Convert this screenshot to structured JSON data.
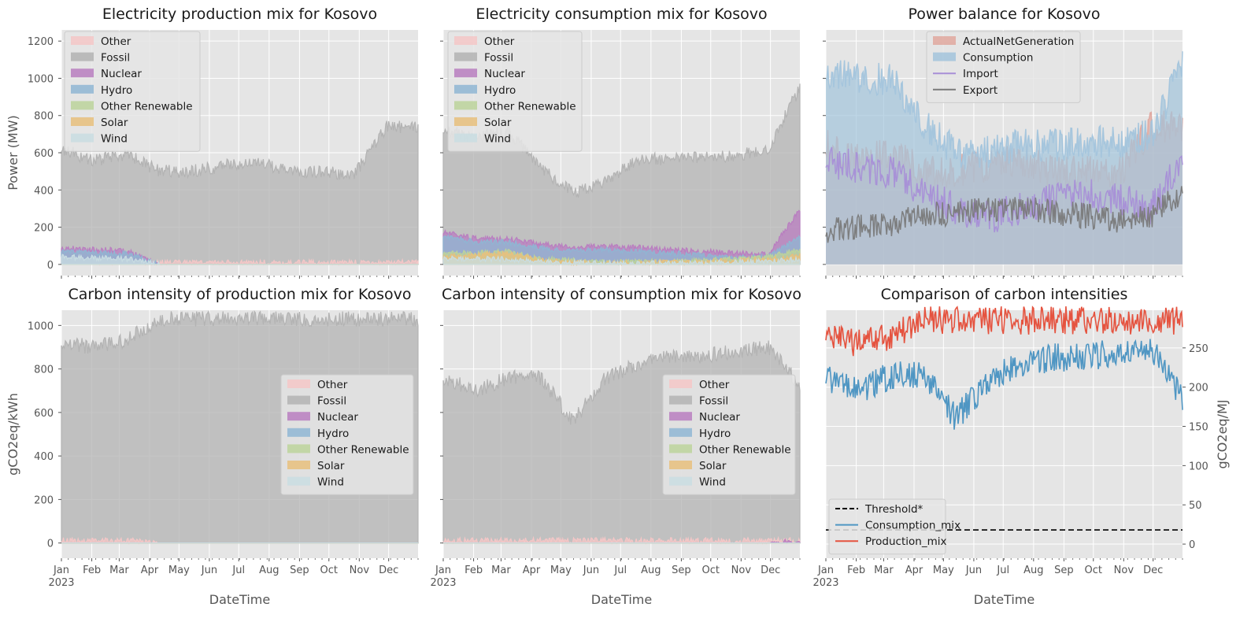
{
  "x_axis": {
    "months": [
      "Jan",
      "Feb",
      "Mar",
      "Apr",
      "May",
      "Jun",
      "Jul",
      "Aug",
      "Sep",
      "Oct",
      "Nov",
      "Dec"
    ],
    "year": "2023",
    "label": "DateTime"
  },
  "colors": {
    "Other": "#f4c7c7",
    "Fossil": "#b3b3b3",
    "Nuclear": "#b97ec0",
    "Hydro": "#8fb6d3",
    "Other Renewable": "#bcd39b",
    "Solar": "#e8c07d",
    "Wind": "#c9dde2",
    "ActualNetGeneration": "#e0a89f",
    "Consumption": "#a3c4dc",
    "Import": "#a88fd7",
    "Export": "#7a7a7a",
    "Threshold*": "#000000",
    "Consumption_mix": "#4f96c3",
    "Production_mix": "#e5533f"
  },
  "legends": {
    "mix": [
      "Other",
      "Fossil",
      "Nuclear",
      "Hydro",
      "Other Renewable",
      "Solar",
      "Wind"
    ],
    "balance": [
      "ActualNetGeneration",
      "Consumption",
      "Import",
      "Export"
    ],
    "comparison": [
      "Threshold*",
      "Consumption_mix",
      "Production_mix"
    ]
  },
  "chart_data": [
    {
      "type": "area",
      "title": "Electricity production mix for Kosovo",
      "ylabel": "Power (MW)",
      "xlabel": "",
      "yticks": [
        0,
        200,
        400,
        600,
        800,
        1000,
        1200
      ],
      "ylim": [
        -60,
        1260
      ],
      "legend": "top-left",
      "grid": true,
      "x": [
        "2023-01",
        "2023-02",
        "2023-03",
        "2023-04",
        "2023-05",
        "2023-06",
        "2023-07",
        "2023-08",
        "2023-09",
        "2023-10",
        "2023-11",
        "2023-12"
      ],
      "series": [
        {
          "name": "Fossil",
          "values": [
            620,
            560,
            590,
            500,
            500,
            530,
            550,
            500,
            500,
            480,
            740,
            740
          ]
        },
        {
          "name": "Other",
          "values": [
            20,
            15,
            15,
            10,
            10,
            10,
            10,
            10,
            10,
            10,
            10,
            10
          ]
        },
        {
          "name": "Nuclear",
          "values": [
            90,
            80,
            75,
            0,
            0,
            0,
            0,
            0,
            0,
            0,
            0,
            0
          ]
        },
        {
          "name": "Hydro",
          "values": [
            70,
            60,
            60,
            0,
            0,
            0,
            0,
            0,
            0,
            0,
            0,
            0
          ]
        },
        {
          "name": "Other Renewable",
          "values": [
            0,
            0,
            0,
            0,
            0,
            0,
            0,
            0,
            0,
            0,
            0,
            0
          ]
        },
        {
          "name": "Solar",
          "values": [
            0,
            0,
            0,
            0,
            0,
            0,
            0,
            0,
            0,
            0,
            0,
            0
          ]
        },
        {
          "name": "Wind",
          "values": [
            40,
            35,
            30,
            0,
            0,
            0,
            0,
            0,
            0,
            0,
            0,
            0
          ]
        }
      ]
    },
    {
      "type": "area",
      "title": "Electricity consumption mix for Kosovo",
      "ylabel": "",
      "xlabel": "",
      "yticks": [
        0,
        200,
        400,
        600,
        800,
        1000,
        1200
      ],
      "ylim": [
        -60,
        1260
      ],
      "legend": "top-left",
      "grid": true,
      "x": [
        "2023-01",
        "2023-02",
        "2023-03",
        "2023-04",
        "2023-05",
        "2023-06",
        "2023-07",
        "2023-08",
        "2023-09",
        "2023-10",
        "2023-11",
        "2023-12"
      ],
      "series": [
        {
          "name": "Fossil",
          "values": [
            720,
            680,
            720,
            520,
            380,
            450,
            560,
            570,
            580,
            580,
            620,
            960
          ]
        },
        {
          "name": "Other",
          "values": [
            20,
            20,
            20,
            15,
            10,
            10,
            10,
            10,
            10,
            10,
            10,
            20
          ]
        },
        {
          "name": "Nuclear",
          "values": [
            170,
            140,
            140,
            110,
            90,
            100,
            90,
            80,
            70,
            60,
            60,
            300
          ]
        },
        {
          "name": "Hydro",
          "values": [
            150,
            120,
            120,
            90,
            70,
            80,
            70,
            60,
            50,
            40,
            40,
            150
          ]
        },
        {
          "name": "Other Renewable",
          "values": [
            60,
            60,
            70,
            30,
            20,
            10,
            15,
            15,
            20,
            30,
            40,
            80
          ]
        },
        {
          "name": "Solar",
          "values": [
            40,
            50,
            60,
            20,
            10,
            5,
            10,
            10,
            15,
            20,
            25,
            50
          ]
        },
        {
          "name": "Wind",
          "values": [
            30,
            30,
            30,
            15,
            10,
            5,
            5,
            5,
            10,
            15,
            15,
            30
          ]
        }
      ]
    },
    {
      "type": "area",
      "title": "Power balance for Kosovo",
      "ylabel": "",
      "xlabel": "",
      "yticks": [
        0,
        200,
        400,
        600,
        800,
        1000,
        1200
      ],
      "ylim": [
        -60,
        1260
      ],
      "legend": "top-center",
      "grid": true,
      "x": [
        "2023-01",
        "2023-02",
        "2023-03",
        "2023-04",
        "2023-05",
        "2023-06",
        "2023-07",
        "2023-08",
        "2023-09",
        "2023-10",
        "2023-11",
        "2023-12"
      ],
      "series": [
        {
          "name": "ActualNetGeneration",
          "values": [
            640,
            560,
            600,
            500,
            500,
            530,
            560,
            500,
            500,
            480,
            740,
            740
          ]
        },
        {
          "name": "Consumption",
          "values": [
            1040,
            1000,
            1000,
            760,
            600,
            600,
            640,
            640,
            660,
            660,
            700,
            1070
          ]
        },
        {
          "name": "Import",
          "values": [
            560,
            520,
            500,
            380,
            300,
            250,
            300,
            350,
            380,
            350,
            300,
            600
          ]
        },
        {
          "name": "Export",
          "values": [
            180,
            200,
            220,
            260,
            280,
            300,
            300,
            280,
            260,
            240,
            260,
            400
          ]
        }
      ]
    },
    {
      "type": "area",
      "title": "Carbon intensity of production mix for Kosovo",
      "ylabel": "gCO2eq/kWh",
      "xlabel": "DateTime",
      "yticks": [
        0,
        200,
        400,
        600,
        800,
        1000
      ],
      "ylim": [
        -70,
        1070
      ],
      "legend": "center-right",
      "grid": true,
      "x": [
        "2023-01",
        "2023-02",
        "2023-03",
        "2023-04",
        "2023-05",
        "2023-06",
        "2023-07",
        "2023-08",
        "2023-09",
        "2023-10",
        "2023-11",
        "2023-12"
      ],
      "series": [
        {
          "name": "Fossil",
          "values": [
            920,
            900,
            930,
            1030,
            1030,
            1030,
            1030,
            1030,
            1030,
            1030,
            1030,
            1030
          ]
        },
        {
          "name": "Other",
          "values": [
            10,
            10,
            10,
            0,
            0,
            0,
            0,
            0,
            0,
            0,
            0,
            0
          ]
        },
        {
          "name": "Nuclear",
          "values": [
            0,
            0,
            0,
            0,
            0,
            0,
            0,
            0,
            0,
            0,
            0,
            0
          ]
        },
        {
          "name": "Hydro",
          "values": [
            0,
            0,
            0,
            0,
            0,
            0,
            0,
            0,
            0,
            0,
            0,
            0
          ]
        },
        {
          "name": "Other Renewable",
          "values": [
            0,
            0,
            0,
            0,
            0,
            0,
            0,
            0,
            0,
            0,
            0,
            0
          ]
        },
        {
          "name": "Solar",
          "values": [
            0,
            0,
            0,
            0,
            0,
            0,
            0,
            0,
            0,
            0,
            0,
            0
          ]
        },
        {
          "name": "Wind",
          "values": [
            0,
            0,
            0,
            0,
            0,
            0,
            0,
            0,
            0,
            0,
            0,
            0
          ]
        }
      ]
    },
    {
      "type": "area",
      "title": "Carbon intensity of consumption mix for Kosovo",
      "ylabel": "",
      "xlabel": "DateTime",
      "yticks": [
        0,
        200,
        400,
        600,
        800,
        1000
      ],
      "ylim": [
        -70,
        1070
      ],
      "legend": "center-right",
      "grid": true,
      "x": [
        "2023-01",
        "2023-02",
        "2023-03",
        "2023-04",
        "2023-05",
        "2023-06",
        "2023-07",
        "2023-08",
        "2023-09",
        "2023-10",
        "2023-11",
        "2023-12"
      ],
      "series": [
        {
          "name": "Fossil",
          "values": [
            760,
            700,
            760,
            760,
            560,
            760,
            820,
            860,
            860,
            880,
            900,
            720
          ]
        },
        {
          "name": "Other",
          "values": [
            10,
            10,
            10,
            10,
            10,
            10,
            10,
            10,
            10,
            10,
            10,
            10
          ]
        },
        {
          "name": "Nuclear",
          "values": [
            0,
            0,
            0,
            0,
            0,
            0,
            0,
            0,
            0,
            0,
            0,
            5
          ]
        },
        {
          "name": "Hydro",
          "values": [
            0,
            0,
            0,
            0,
            0,
            0,
            0,
            0,
            0,
            0,
            0,
            0
          ]
        },
        {
          "name": "Other Renewable",
          "values": [
            0,
            0,
            0,
            0,
            0,
            0,
            0,
            0,
            0,
            0,
            0,
            0
          ]
        },
        {
          "name": "Solar",
          "values": [
            0,
            0,
            0,
            0,
            0,
            0,
            0,
            0,
            0,
            0,
            0,
            0
          ]
        },
        {
          "name": "Wind",
          "values": [
            0,
            0,
            0,
            0,
            0,
            0,
            0,
            0,
            0,
            0,
            0,
            0
          ]
        }
      ]
    },
    {
      "type": "line",
      "title": "Comparison of carbon intensities",
      "ylabel": "gCO2eq/MJ",
      "xlabel": "DateTime",
      "yticks": [
        0,
        50,
        100,
        150,
        200,
        250
      ],
      "ylim": [
        -18,
        298
      ],
      "y_axis_side": "right",
      "legend": "bottom-left",
      "grid": true,
      "x": [
        "2023-01",
        "2023-02",
        "2023-03",
        "2023-04",
        "2023-05",
        "2023-06",
        "2023-07",
        "2023-08",
        "2023-09",
        "2023-10",
        "2023-11",
        "2023-12"
      ],
      "series": [
        {
          "name": "Threshold*",
          "values": [
            18,
            18,
            18,
            18,
            18,
            18,
            18,
            18,
            18,
            18,
            18,
            18
          ]
        },
        {
          "name": "Consumption_mix",
          "values": [
            210,
            195,
            215,
            215,
            160,
            210,
            228,
            238,
            238,
            245,
            250,
            185
          ]
        },
        {
          "name": "Production_mix",
          "values": [
            265,
            255,
            265,
            285,
            285,
            285,
            285,
            285,
            285,
            285,
            285,
            285
          ]
        }
      ]
    }
  ]
}
